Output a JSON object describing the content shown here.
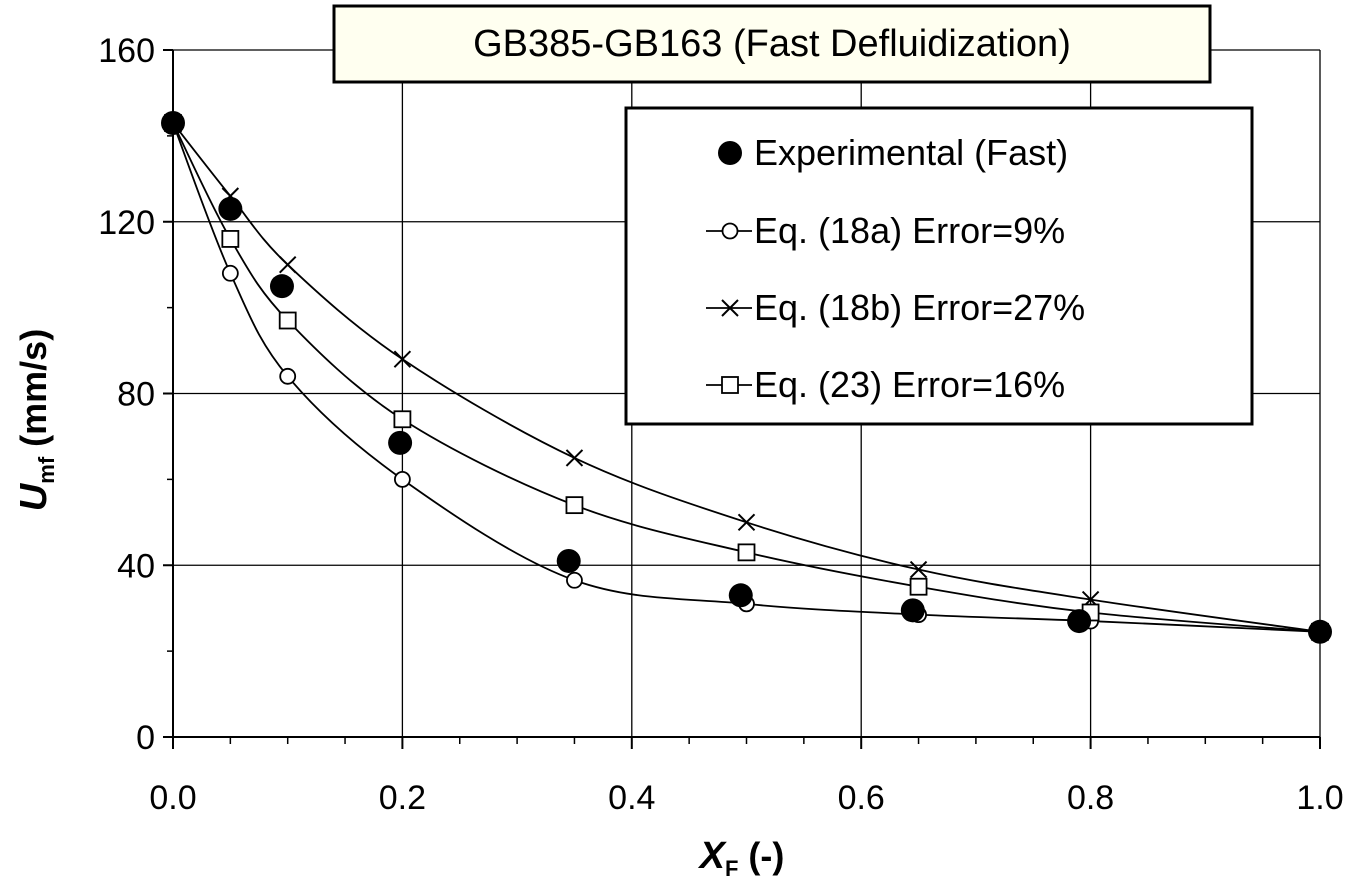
{
  "chart_data": {
    "type": "scatter",
    "title": "GB385-GB163 (Fast Defluidization)",
    "xlabel": {
      "main": "X",
      "sub": "F",
      "rest": " (-)"
    },
    "ylabel": {
      "main": "U",
      "sub": "mf",
      "rest": " (mm/s)"
    },
    "xlim": [
      0,
      1
    ],
    "ylim": [
      0,
      160
    ],
    "x_ticks": [
      "0.0",
      "0.2",
      "0.4",
      "0.6",
      "0.8",
      "1.0"
    ],
    "y_ticks": [
      "0",
      "40",
      "80",
      "120",
      "160"
    ],
    "grid": true,
    "legend_position": "top-right",
    "series": [
      {
        "name": "Experimental (Fast)",
        "marker": "filled-circle",
        "line": false,
        "points": [
          [
            0.0,
            143
          ],
          [
            0.05,
            123
          ],
          [
            0.095,
            105
          ],
          [
            0.198,
            68.5
          ],
          [
            0.345,
            41
          ],
          [
            0.495,
            33
          ],
          [
            0.645,
            29.5
          ],
          [
            0.79,
            27
          ],
          [
            1.0,
            24.5
          ]
        ]
      },
      {
        "name": "Eq. (18a) Error=9%",
        "marker": "open-circle",
        "line": true,
        "points": [
          [
            0.0,
            143
          ],
          [
            0.05,
            108
          ],
          [
            0.1,
            84
          ],
          [
            0.2,
            60
          ],
          [
            0.35,
            36.5
          ],
          [
            0.5,
            31
          ],
          [
            0.65,
            28.5
          ],
          [
            0.8,
            27
          ],
          [
            1.0,
            24.5
          ]
        ]
      },
      {
        "name": "Eq. (18b) Error=27%",
        "marker": "cross",
        "line": true,
        "points": [
          [
            0.0,
            143
          ],
          [
            0.05,
            126
          ],
          [
            0.1,
            110
          ],
          [
            0.2,
            88
          ],
          [
            0.35,
            65
          ],
          [
            0.5,
            50
          ],
          [
            0.65,
            39
          ],
          [
            0.8,
            32
          ],
          [
            1.0,
            24.5
          ]
        ]
      },
      {
        "name": "Eq. (23)  Error=16%",
        "marker": "open-square",
        "line": true,
        "points": [
          [
            0.0,
            143
          ],
          [
            0.05,
            116
          ],
          [
            0.1,
            97
          ],
          [
            0.2,
            74
          ],
          [
            0.35,
            54
          ],
          [
            0.5,
            43
          ],
          [
            0.65,
            35
          ],
          [
            0.8,
            29
          ],
          [
            1.0,
            24.5
          ]
        ]
      }
    ]
  }
}
